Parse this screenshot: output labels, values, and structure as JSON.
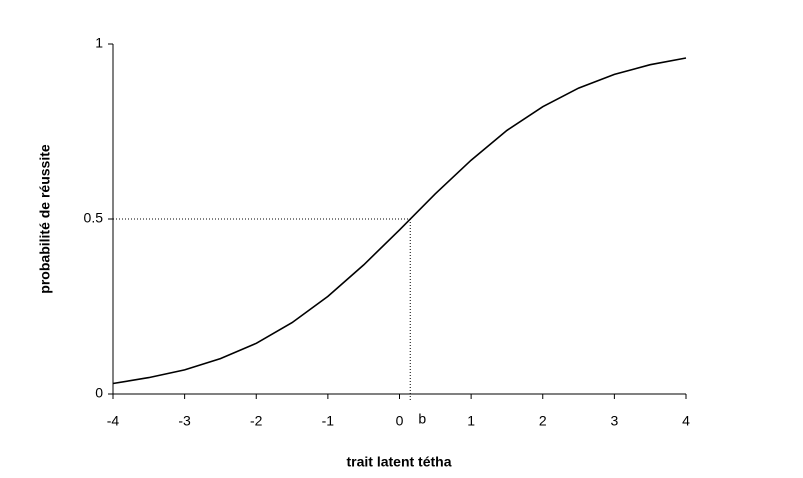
{
  "chart_data": {
    "type": "line",
    "x_label": "trait latent tétha",
    "y_label": "probabilité de réussite",
    "x": [
      -4,
      -3.5,
      -3,
      -2.5,
      -2,
      -1.5,
      -1,
      -0.5,
      0,
      0.5,
      1,
      1.5,
      2,
      2.5,
      3,
      3.5,
      4
    ],
    "series": [
      {
        "color": "#000000",
        "values": [
          0.03,
          0.047,
          0.069,
          0.101,
          0.145,
          0.204,
          0.279,
          0.369,
          0.469,
          0.572,
          0.668,
          0.753,
          0.821,
          0.874,
          0.913,
          0.941,
          0.96
        ]
      }
    ],
    "xlim": [
      -4,
      4
    ],
    "ylim": [
      0,
      1
    ],
    "xticks": [
      -4,
      -3,
      -2,
      -1,
      0,
      1,
      2,
      3,
      4
    ],
    "yticks": [
      0,
      0.5,
      1
    ],
    "grid": false,
    "reference_point": {
      "label": "b",
      "x": 0.15,
      "y": 0.5
    }
  }
}
